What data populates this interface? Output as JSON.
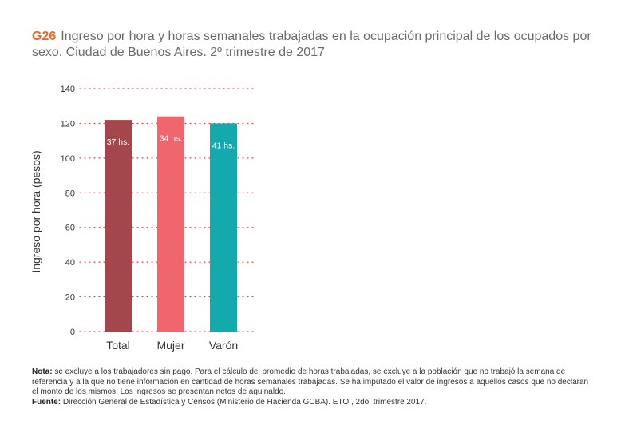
{
  "header": {
    "code": "G26",
    "title": "Ingreso por hora y horas semanales trabajadas en la ocupación principal de los ocupados por sexo. Ciudad de Buenos Aires. 2º trimestre de 2017"
  },
  "chart_data": {
    "type": "bar",
    "title": "Ingreso por hora y horas semanales trabajadas en la ocupación principal de los ocupados por sexo. Ciudad de Buenos Aires. 2º trimestre de 2017",
    "xlabel": "",
    "ylabel": "Ingreso por hora (pesos)",
    "categories": [
      "Total",
      "Mujer",
      "Varón"
    ],
    "values": [
      122,
      124,
      120
    ],
    "labels": [
      "37 hs.",
      "34 hs.",
      "41 hs."
    ],
    "colors": [
      "#a3474d",
      "#ef666e",
      "#13a9ad"
    ],
    "ylim": [
      0,
      140
    ],
    "yticks": [
      0,
      20,
      40,
      60,
      80,
      100,
      120,
      140
    ],
    "grid": true,
    "grid_color": "#e8403a"
  },
  "notes": {
    "nota_label": "Nota:",
    "nota_text": " se excluye a los trabajadores sin pago. Para el cálculo del promedio de horas trabajadas, se excluye a la población que no trabajó la semana de referencia y a la que no tiene información en cantidad de horas semanales trabajadas. Se ha imputado el valor de ingresos a aquellos casos que no declaran el monto de los mismos. Los ingresos se presentan netos de aguinaldo.",
    "fuente_label": "Fuente:",
    "fuente_text": " Dirección General de Estadística y Censos (Ministerio de Hacienda GCBA). ETOI, 2do. trimestre 2017."
  }
}
